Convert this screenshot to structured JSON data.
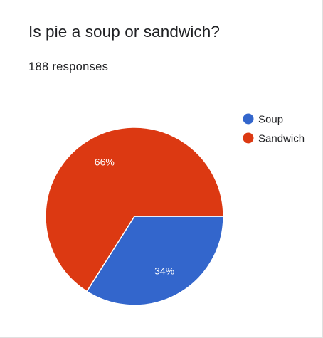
{
  "card": {
    "title": "Is pie a soup or sandwich?",
    "responses": "188 responses"
  },
  "chart_data": {
    "type": "pie",
    "categories": [
      "Soup",
      "Sandwich"
    ],
    "values": [
      34,
      66
    ],
    "labels": [
      "34%",
      "66%"
    ],
    "colors": [
      "#3366cc",
      "#dc3912"
    ],
    "legend": "right"
  }
}
